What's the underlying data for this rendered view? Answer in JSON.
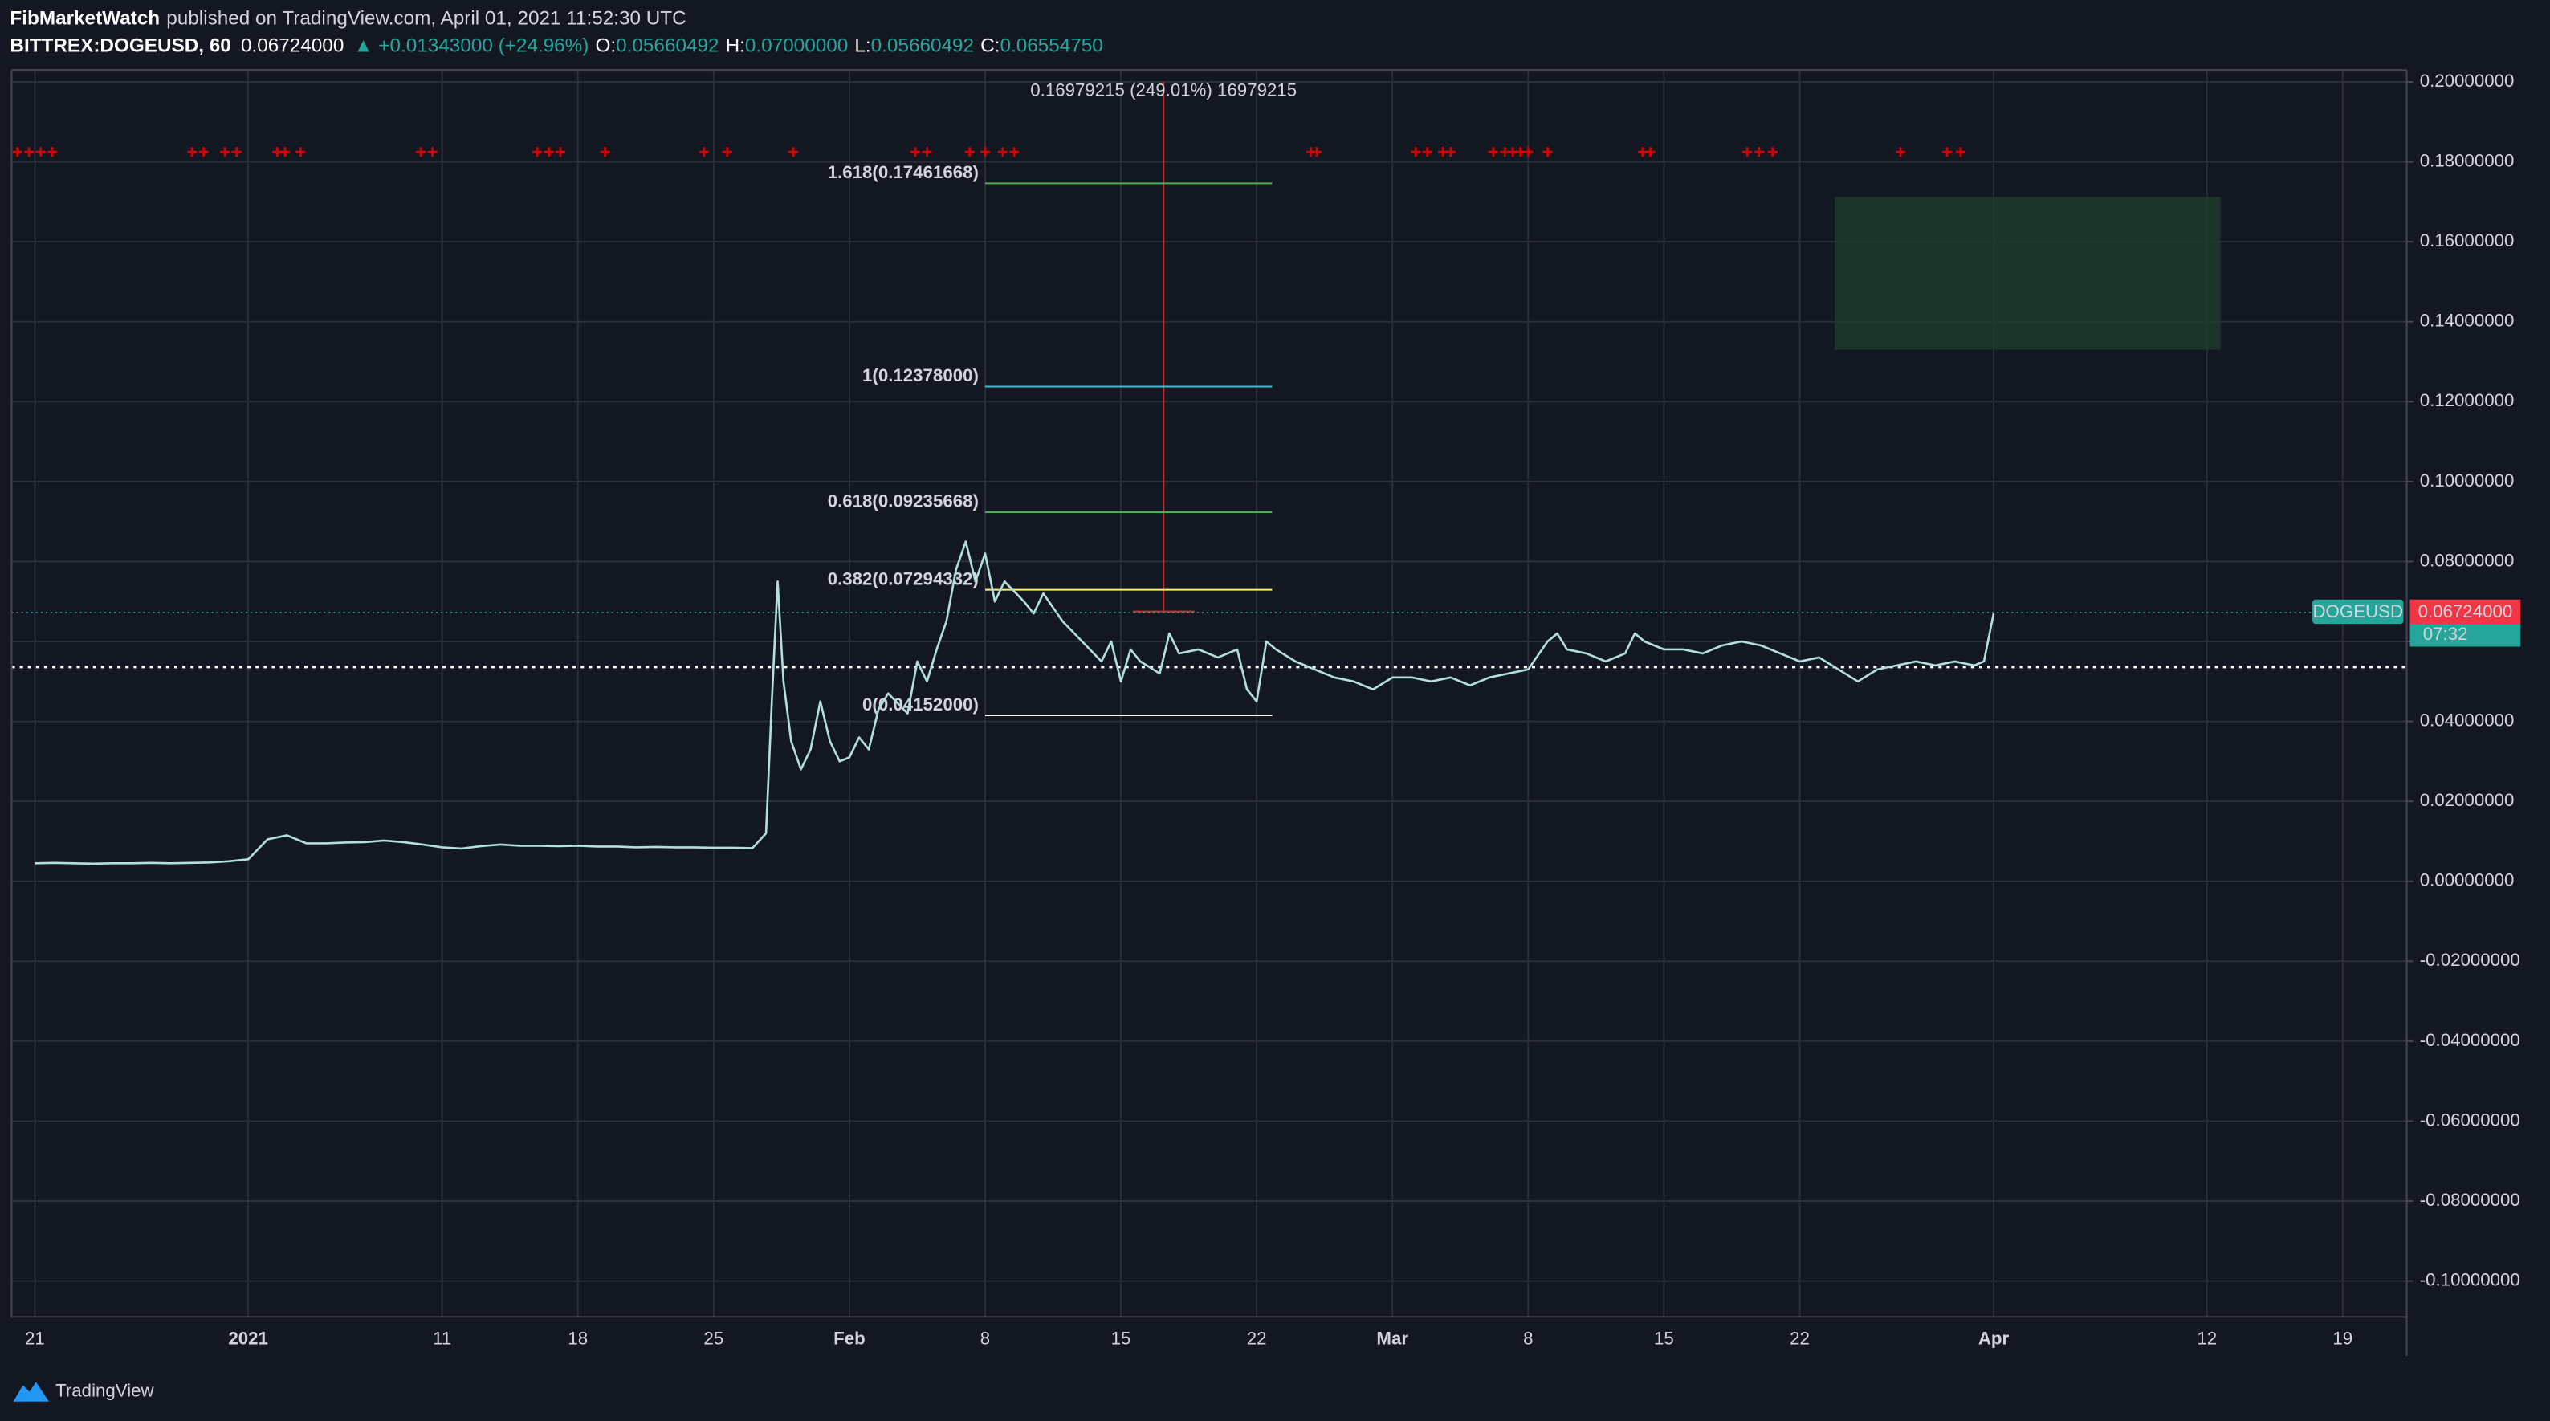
{
  "header": {
    "author": "FibMarketWatch",
    "published": "published on TradingView.com, April 01, 2021 11:52:30 UTC",
    "symbol": "BITTREX:DOGEUSD, 60",
    "change": "▲ +0.01343000 (+24.96%)",
    "ohlc": [
      {
        "label": "O:",
        "value": "0.05660492"
      },
      {
        "label": "H:",
        "value": "0.07000000"
      },
      {
        "label": "L:",
        "value": "0.05660492"
      },
      {
        "label": "C:",
        "value": "0.06554750"
      }
    ]
  },
  "brand": "TradingView",
  "chart_data": {
    "type": "line",
    "xlim": [
      -1.2,
      122.3
    ],
    "xticks": [
      {
        "value": 0,
        "label": "21"
      },
      {
        "value": 11,
        "label": "2021"
      },
      {
        "value": 21,
        "label": "11"
      },
      {
        "value": 28,
        "label": "18"
      },
      {
        "value": 35,
        "label": "25"
      },
      {
        "value": 42,
        "label": "Feb"
      },
      {
        "value": 49,
        "label": "8"
      },
      {
        "value": 56,
        "label": "15"
      },
      {
        "value": 63,
        "label": "22"
      },
      {
        "value": 70,
        "label": "Mar"
      },
      {
        "value": 77,
        "label": "8"
      },
      {
        "value": 84,
        "label": "15"
      },
      {
        "value": 91,
        "label": "22"
      },
      {
        "value": 101,
        "label": "Apr"
      },
      {
        "value": 112,
        "label": "12"
      },
      {
        "value": 119,
        "label": "19"
      }
    ],
    "ylim": [
      -0.109,
      0.203
    ],
    "yticks": [
      {
        "value": 0.2,
        "label": "0.20000000"
      },
      {
        "value": 0.18,
        "label": "0.18000000"
      },
      {
        "value": 0.16,
        "label": "0.16000000"
      },
      {
        "value": 0.14,
        "label": "0.14000000"
      },
      {
        "value": 0.12,
        "label": "0.12000000"
      },
      {
        "value": 0.1,
        "label": "0.10000000"
      },
      {
        "value": 0.08,
        "label": "0.08000000"
      },
      {
        "value": 0.06,
        "label": "0.06000000"
      },
      {
        "value": 0.04,
        "label": "0.04000000"
      },
      {
        "value": 0.02,
        "label": "0.02000000"
      },
      {
        "value": 0,
        "label": "0.00000000"
      },
      {
        "value": -0.02,
        "label": "-0.02000000"
      },
      {
        "value": -0.04,
        "label": "-0.04000000"
      },
      {
        "value": -0.06,
        "label": "-0.06000000"
      },
      {
        "value": -0.08,
        "label": "-0.08000000"
      },
      {
        "value": -0.1,
        "label": "-0.10000000"
      }
    ],
    "grid": true,
    "series": [
      {
        "name": "DOGEUSD",
        "color": "#b2dfdb",
        "x": [
          0,
          1,
          2,
          3,
          4,
          5,
          6,
          7,
          8,
          9,
          10,
          11,
          12,
          13,
          14,
          15,
          16,
          17,
          18,
          19,
          20,
          21,
          22,
          23,
          24,
          25,
          26,
          27,
          28,
          29,
          30,
          31,
          32,
          33,
          34,
          35,
          36,
          37,
          37.7,
          38,
          38.3,
          38.6,
          39,
          39.5,
          40,
          40.5,
          41,
          41.5,
          42,
          42.5,
          43,
          43.5,
          44,
          45,
          45.5,
          46,
          46.5,
          47,
          47.5,
          48,
          48.5,
          49,
          49.5,
          50,
          51,
          51.5,
          52,
          53,
          54,
          55,
          55.5,
          56,
          56.5,
          57,
          58,
          58.5,
          59,
          60,
          61,
          62,
          62.5,
          63,
          63.5,
          64,
          65,
          66,
          67,
          68,
          69,
          70,
          71,
          72,
          73,
          74,
          75,
          76,
          77,
          78,
          78.5,
          79,
          80,
          81,
          82,
          82.5,
          83,
          84,
          85,
          86,
          87,
          88,
          89,
          90,
          91,
          92,
          93,
          94,
          95,
          96,
          97,
          98,
          99,
          100,
          100.5,
          101
        ],
        "values": [
          0.0045,
          0.0046,
          0.0045,
          0.0044,
          0.0045,
          0.0045,
          0.0046,
          0.0045,
          0.0046,
          0.0047,
          0.005,
          0.0055,
          0.0105,
          0.0115,
          0.0095,
          0.0095,
          0.0097,
          0.0098,
          0.0102,
          0.0098,
          0.0092,
          0.0085,
          0.0082,
          0.0088,
          0.0092,
          0.0089,
          0.0089,
          0.0088,
          0.0089,
          0.0087,
          0.0087,
          0.0085,
          0.0086,
          0.0085,
          0.0085,
          0.0084,
          0.0084,
          0.0083,
          0.012,
          0.045,
          0.075,
          0.05,
          0.035,
          0.028,
          0.033,
          0.045,
          0.035,
          0.03,
          0.031,
          0.036,
          0.033,
          0.043,
          0.047,
          0.042,
          0.055,
          0.05,
          0.058,
          0.065,
          0.078,
          0.085,
          0.075,
          0.082,
          0.07,
          0.075,
          0.07,
          0.067,
          0.072,
          0.065,
          0.06,
          0.055,
          0.06,
          0.05,
          0.058,
          0.055,
          0.052,
          0.062,
          0.057,
          0.058,
          0.056,
          0.058,
          0.048,
          0.045,
          0.06,
          0.058,
          0.055,
          0.053,
          0.051,
          0.05,
          0.048,
          0.051,
          0.051,
          0.05,
          0.051,
          0.049,
          0.051,
          0.052,
          0.053,
          0.06,
          0.062,
          0.058,
          0.057,
          0.055,
          0.057,
          0.062,
          0.06,
          0.058,
          0.058,
          0.057,
          0.059,
          0.06,
          0.059,
          0.057,
          0.055,
          0.056,
          0.053,
          0.05,
          0.053,
          0.054,
          0.055,
          0.054,
          0.055,
          0.054,
          0.055,
          0.067
        ]
      }
    ],
    "last_price": {
      "value": 0.06724,
      "label": "0.06724000",
      "color": "#f23645"
    },
    "countdown": "07:32",
    "reference_line": 0.0536,
    "fib_levels": [
      {
        "label": "1.618(0.17461668)",
        "value": 0.17461668,
        "color": "#4caf50",
        "text_color": "#76ff03"
      },
      {
        "label": "1(0.12378000)",
        "value": 0.12378,
        "color": "#26c6da",
        "text_color": "#26c6da"
      },
      {
        "label": "0.618(0.09235668)",
        "value": 0.09235668,
        "color": "#4caf50",
        "text_color": "#76ff03"
      },
      {
        "label": "0.382(0.07294332)",
        "value": 0.07294332,
        "color": "#fff176",
        "text_color": "#fff9c4"
      },
      {
        "label": "0(0.04152000)",
        "value": 0.04152,
        "color": "#ffffff",
        "text_color": "#ffffff"
      }
    ],
    "fib_x": [
      49,
      63.8
    ],
    "measure": {
      "text": "0.16979215 (249.01%) 16979215",
      "x": 58.2,
      "from": 0.0675,
      "to": 0.2
    },
    "zone": {
      "x": [
        92.8,
        112.7
      ],
      "y": [
        0.133,
        0.1712
      ],
      "color": "#1e3a2b"
    },
    "signals": {
      "y": 0.1825,
      "color": "#d50000",
      "x": [
        -0.9,
        -0.3,
        0.3,
        0.9,
        8.1,
        8.7,
        9.8,
        10.4,
        12.5,
        12.9,
        13.7,
        19.9,
        20.5,
        25.9,
        26.5,
        27.1,
        29.4,
        34.5,
        35.7,
        39.1,
        45.4,
        46,
        48.2,
        49,
        49.9,
        50.5,
        65.8,
        66.1,
        71.2,
        71.8,
        72.6,
        73,
        75.2,
        75.8,
        76.2,
        76.6,
        77,
        78,
        82.9,
        83.3,
        88.3,
        88.9,
        89.6,
        96.2,
        98.6,
        99.3
      ]
    }
  }
}
